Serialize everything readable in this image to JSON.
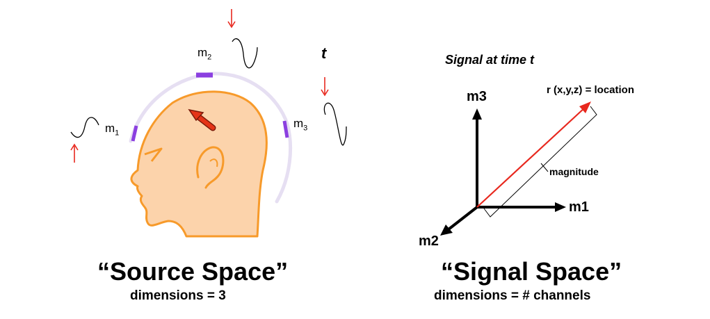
{
  "source_space": {
    "sensors": [
      {
        "name": "m",
        "sub": "1"
      },
      {
        "name": "m",
        "sub": "2"
      },
      {
        "name": "m",
        "sub": "3"
      }
    ],
    "time_label": "t",
    "title": "“Source Space”",
    "subtitle": "dimensions = 3"
  },
  "signal_space": {
    "heading": "Signal at time t",
    "axes": {
      "x": "m1",
      "y": "m3",
      "z": "m2"
    },
    "vector_label": "r (x,y,z) = location",
    "magnitude_label": "magnitude",
    "title": "“Signal Space”",
    "subtitle": "dimensions = # channels"
  },
  "colors": {
    "head_fill": "#fcd3ab",
    "head_stroke": "#f79a2a",
    "helmet": "#e6dff2",
    "sensor": "#8b3fe0",
    "arrow_red": "#e8281e",
    "dipole_fill": "#e53418",
    "axis": "#000000"
  }
}
